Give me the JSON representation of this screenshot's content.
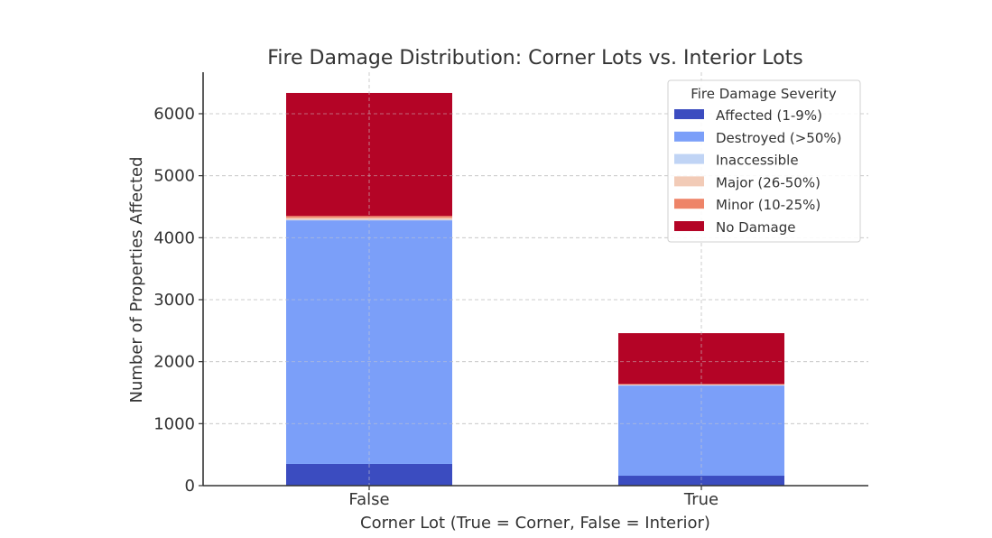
{
  "chart_data": {
    "type": "bar",
    "stacked": true,
    "title": "Fire Damage Distribution: Corner Lots vs. Interior Lots",
    "xlabel": "Corner Lot (True = Corner, False = Interior)",
    "ylabel": "Number of Properties Affected",
    "categories": [
      "False",
      "True"
    ],
    "ylim": [
      0,
      6650
    ],
    "yticks": [
      0,
      1000,
      2000,
      3000,
      4000,
      5000,
      6000
    ],
    "grid": true,
    "legend_title": "Fire Damage Severity",
    "legend_position": "upper right",
    "series": [
      {
        "name": "Affected (1-9%)",
        "color": "#3b4cc0",
        "values": [
          350,
          160
        ]
      },
      {
        "name": "Destroyed (>50%)",
        "color": "#7b9ff9",
        "values": [
          3930,
          1455
        ]
      },
      {
        "name": "Inaccessible",
        "color": "#c0d4f5",
        "values": [
          10,
          5
        ]
      },
      {
        "name": "Major (26-50%)",
        "color": "#f2cbb7",
        "values": [
          30,
          10
        ]
      },
      {
        "name": "Minor (10-25%)",
        "color": "#ee8468",
        "values": [
          30,
          10
        ]
      },
      {
        "name": "No Damage",
        "color": "#b40426",
        "values": [
          1985,
          820
        ]
      }
    ]
  }
}
